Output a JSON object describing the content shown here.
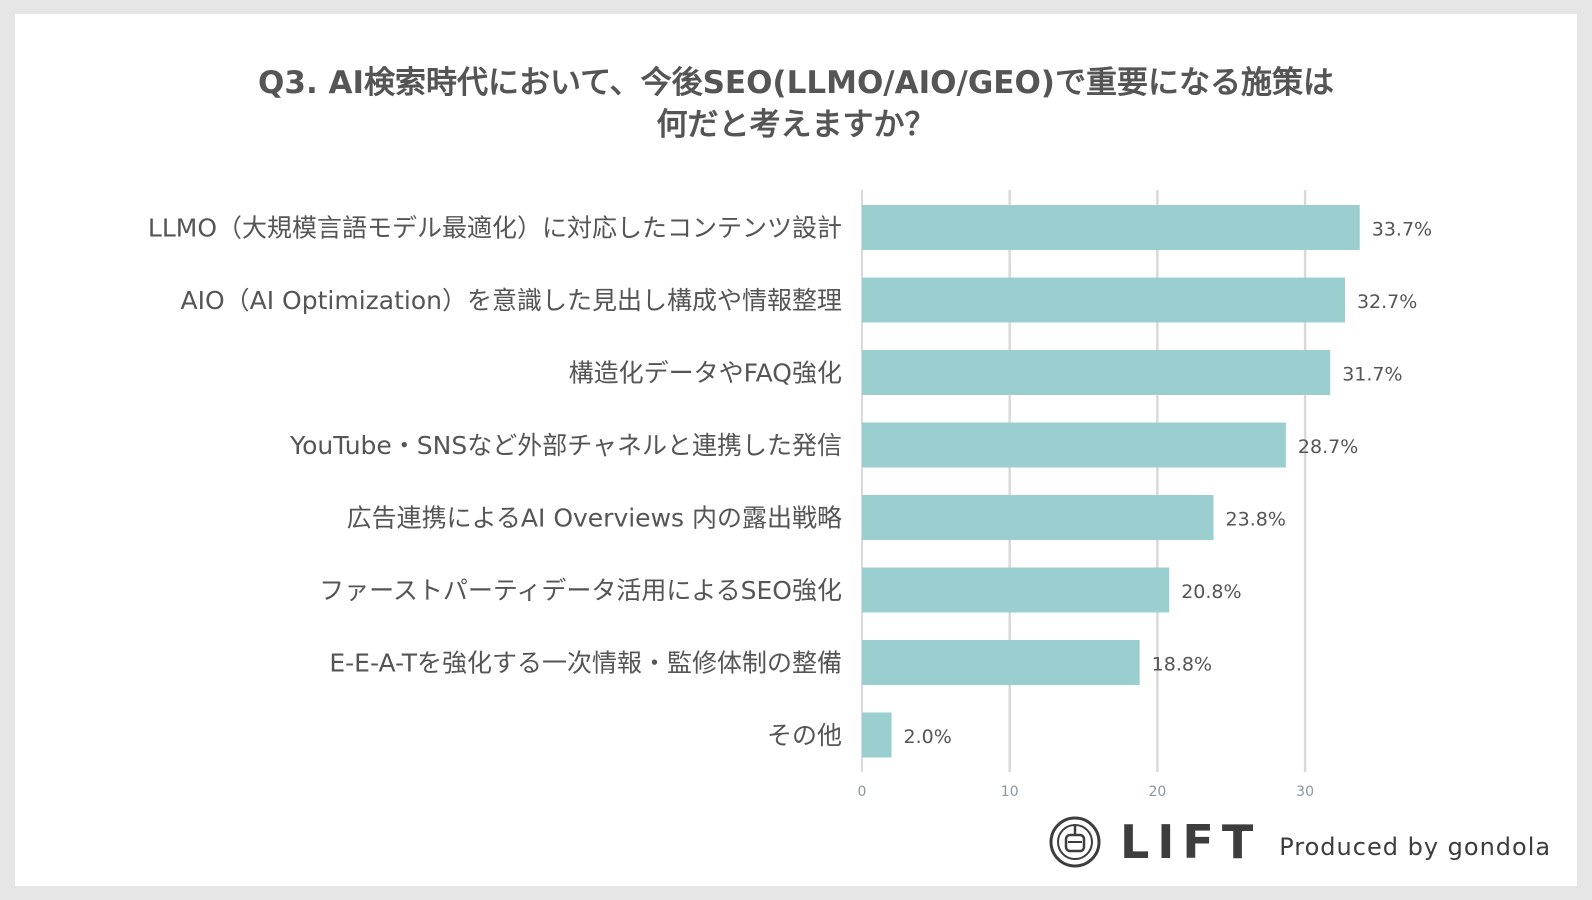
{
  "title": "Q3. AI検索時代において、今後SEO(LLMO/AIO/GEO)で重要になる施策は\n何だと考えますか？",
  "chart_data": {
    "type": "bar",
    "orientation": "horizontal",
    "title": "Q3. AI検索時代において、今後SEO(LLMO/AIO/GEO)で重要になる施策は 何だと考えますか？",
    "categories": [
      "LLMO（大規模言語モデル最適化）に対応したコンテンツ設計",
      "AIO（AI Optimization）を意識した見出し構成や情報整理",
      "構造化データやFAQ強化",
      "YouTube・SNSなど外部チャネルと連携した発信",
      "広告連携によるAI Overviews 内の露出戦略",
      "ファーストパーティデータ活用によるSEO強化",
      "E-E-A-Tを強化する一次情報・監修体制の整備",
      "その他"
    ],
    "values": [
      33.7,
      32.7,
      31.7,
      28.7,
      23.8,
      20.8,
      18.8,
      2.0
    ],
    "value_labels": [
      "33.7%",
      "32.7%",
      "31.7%",
      "28.7%",
      "23.8%",
      "20.8%",
      "18.8%",
      "2.0%"
    ],
    "x_ticks": [
      0,
      10,
      20,
      30
    ],
    "xlim": [
      0,
      39
    ],
    "grid": true,
    "bar_color": "#9bcfcf",
    "grid_color": "#d9d9d9"
  },
  "footer": {
    "brand": "LIFT",
    "produced_by": "Produced by gondola"
  }
}
